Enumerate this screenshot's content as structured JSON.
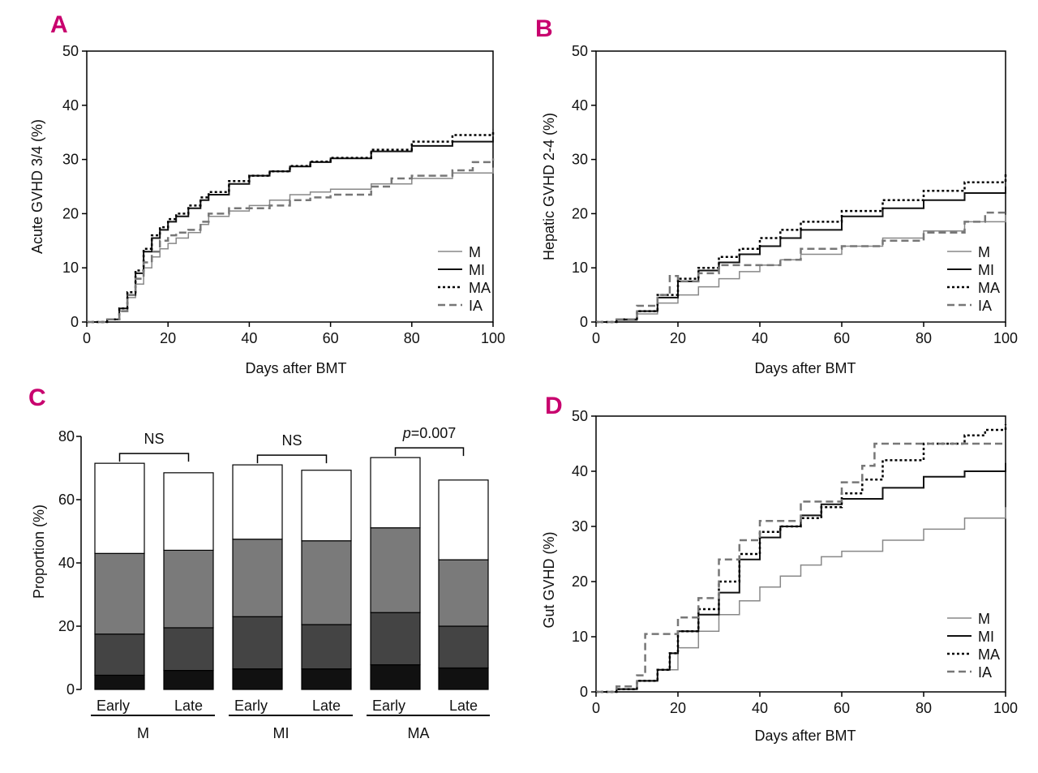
{
  "chart_data": [
    {
      "panel": "A",
      "type": "line",
      "ylabel": "Acute GVHD 3/4 (%)",
      "xlabel": "Days after BMT",
      "xlim": [
        0,
        100
      ],
      "ylim": [
        0,
        50
      ],
      "xticks": [
        "0",
        "20",
        "40",
        "60",
        "80",
        "100"
      ],
      "yticks": [
        "0",
        "10",
        "20",
        "30",
        "40",
        "50"
      ],
      "legend_position": "bottom-right",
      "series": [
        {
          "name": "M",
          "color": "#888888",
          "dash": "solid",
          "width": 1.5,
          "x": [
            0,
            5,
            8,
            10,
            12,
            14,
            16,
            18,
            20,
            22,
            25,
            28,
            30,
            35,
            40,
            45,
            50,
            55,
            60,
            70,
            80,
            90,
            100
          ],
          "y": [
            0,
            0.5,
            2,
            4.5,
            7,
            10,
            12,
            13.5,
            14.5,
            15.5,
            16.5,
            18,
            19.5,
            20.5,
            21.5,
            22.5,
            23.5,
            24,
            24.5,
            25.5,
            26.5,
            27.5,
            28.5
          ]
        },
        {
          "name": "MI",
          "color": "#111111",
          "dash": "solid",
          "width": 2,
          "x": [
            0,
            5,
            8,
            10,
            12,
            14,
            16,
            18,
            20,
            22,
            25,
            28,
            30,
            35,
            40,
            45,
            50,
            55,
            60,
            70,
            80,
            90,
            100
          ],
          "y": [
            0,
            0.5,
            2.5,
            5,
            9,
            13,
            15.5,
            17,
            18.5,
            19.5,
            21,
            22.5,
            23.5,
            25.5,
            27,
            27.8,
            28.7,
            29.5,
            30.2,
            31.5,
            32.5,
            33.3,
            34.2
          ]
        },
        {
          "name": "MA",
          "color": "#000000",
          "dash": "dotted",
          "width": 2.5,
          "x": [
            0,
            5,
            8,
            10,
            12,
            14,
            16,
            18,
            20,
            22,
            25,
            28,
            30,
            35,
            40,
            45,
            50,
            55,
            60,
            70,
            80,
            90,
            100
          ],
          "y": [
            0,
            0.5,
            2.5,
            5.5,
            9.5,
            13.5,
            16,
            17.5,
            19,
            20,
            21.5,
            23,
            24,
            26,
            27,
            27.8,
            28.8,
            29.6,
            30.3,
            31.8,
            33.3,
            34.5,
            35.5
          ]
        },
        {
          "name": "IA",
          "color": "#777777",
          "dash": "dashed",
          "width": 2.5,
          "x": [
            0,
            5,
            8,
            10,
            12,
            14,
            16,
            18,
            20,
            22,
            25,
            28,
            30,
            35,
            40,
            45,
            50,
            55,
            60,
            70,
            75,
            80,
            90,
            95,
            100
          ],
          "y": [
            0,
            0.5,
            2,
            5,
            8,
            11,
            13,
            15,
            16,
            16.5,
            17,
            18.5,
            20,
            21,
            21,
            21.5,
            22.5,
            23,
            23.5,
            25,
            26.5,
            27,
            28,
            29.5,
            30.2
          ]
        }
      ]
    },
    {
      "panel": "B",
      "type": "line",
      "ylabel": "Hepatic GVHD 2-4 (%)",
      "xlabel": "Days after BMT",
      "xlim": [
        0,
        100
      ],
      "ylim": [
        0,
        50
      ],
      "xticks": [
        "0",
        "20",
        "40",
        "60",
        "80",
        "100"
      ],
      "yticks": [
        "0",
        "10",
        "20",
        "30",
        "40",
        "50"
      ],
      "legend_position": "bottom-right",
      "series": [
        {
          "name": "M",
          "color": "#888888",
          "dash": "solid",
          "width": 1.5,
          "x": [
            0,
            5,
            10,
            15,
            20,
            25,
            30,
            35,
            40,
            45,
            50,
            60,
            70,
            80,
            90,
            100
          ],
          "y": [
            0,
            0.3,
            1.5,
            3.5,
            5,
            6.5,
            8,
            9.3,
            10.5,
            11.5,
            12.5,
            14,
            15.5,
            16.8,
            18.5,
            19.8
          ]
        },
        {
          "name": "MI",
          "color": "#111111",
          "dash": "solid",
          "width": 2,
          "x": [
            0,
            5,
            10,
            15,
            20,
            25,
            30,
            35,
            40,
            45,
            50,
            60,
            70,
            80,
            90,
            100
          ],
          "y": [
            0,
            0.5,
            2,
            4.5,
            7.5,
            9.5,
            11,
            12.5,
            14,
            15.5,
            17,
            19.5,
            21,
            22.5,
            23.8,
            25
          ]
        },
        {
          "name": "MA",
          "color": "#000000",
          "dash": "dotted",
          "width": 2.5,
          "x": [
            0,
            5,
            10,
            15,
            20,
            25,
            30,
            35,
            40,
            45,
            50,
            60,
            70,
            80,
            90,
            100
          ],
          "y": [
            0,
            0.5,
            2,
            5,
            8,
            10,
            12,
            13.5,
            15.5,
            17,
            18.5,
            20.5,
            22.5,
            24.2,
            25.8,
            27.3
          ]
        },
        {
          "name": "IA",
          "color": "#777777",
          "dash": "dashed",
          "width": 2.5,
          "x": [
            0,
            5,
            10,
            15,
            18,
            20,
            25,
            30,
            35,
            40,
            45,
            50,
            60,
            70,
            80,
            90,
            95,
            100
          ],
          "y": [
            0,
            0.5,
            3,
            5,
            8.5,
            7.5,
            9,
            10.5,
            10.5,
            10.5,
            11.5,
            13.5,
            14,
            15,
            16.5,
            18.5,
            20.2,
            20.2
          ]
        }
      ]
    },
    {
      "panel": "C",
      "type": "bar",
      "stacked": true,
      "ylabel": "Proportion (%)",
      "ylim": [
        0,
        80
      ],
      "yticks": [
        "0",
        "20",
        "40",
        "60",
        "80"
      ],
      "categories": [
        "Early",
        "Late",
        "Early",
        "Late",
        "Early",
        "Late"
      ],
      "groups": [
        "M",
        "MI",
        "MA"
      ],
      "significance": [
        {
          "text": "NS",
          "italic_prefix": ""
        },
        {
          "text": "NS",
          "italic_prefix": ""
        },
        {
          "text": "=0.007",
          "italic_prefix": "p"
        }
      ],
      "segment_colors": [
        "#111111",
        "#444444",
        "#7a7a7a",
        "#ffffff"
      ],
      "series": [
        {
          "values": [
            4.5,
            6,
            6.5,
            6.5,
            7.8,
            6.8
          ]
        },
        {
          "values": [
            13,
            13.5,
            16.5,
            14,
            16.5,
            13.2
          ]
        },
        {
          "values": [
            25.5,
            24.5,
            24.5,
            26.5,
            26.8,
            21
          ]
        },
        {
          "values": [
            28.5,
            24.5,
            23.5,
            22.3,
            22.2,
            25.2
          ]
        }
      ]
    },
    {
      "panel": "D",
      "type": "line",
      "ylabel": "Gut GVHD (%)",
      "xlabel": "Days after BMT",
      "xlim": [
        0,
        100
      ],
      "ylim": [
        0,
        50
      ],
      "xticks": [
        "0",
        "20",
        "40",
        "60",
        "80",
        "100"
      ],
      "yticks": [
        "0",
        "10",
        "20",
        "30",
        "40",
        "50"
      ],
      "legend_position": "bottom-right",
      "series": [
        {
          "name": "M",
          "color": "#888888",
          "dash": "solid",
          "width": 1.5,
          "x": [
            0,
            5,
            10,
            15,
            20,
            25,
            30,
            35,
            40,
            45,
            50,
            55,
            60,
            70,
            80,
            90,
            100
          ],
          "y": [
            0,
            0.5,
            2,
            4,
            8,
            11,
            14,
            16.5,
            19,
            21,
            23,
            24.5,
            25.5,
            27.5,
            29.5,
            31.5,
            33.5
          ]
        },
        {
          "name": "MI",
          "color": "#111111",
          "dash": "solid",
          "width": 2,
          "x": [
            0,
            5,
            10,
            15,
            18,
            20,
            25,
            30,
            35,
            40,
            45,
            50,
            55,
            60,
            70,
            80,
            90,
            100
          ],
          "y": [
            0,
            0.5,
            2,
            4,
            7,
            11,
            14,
            18,
            24,
            28,
            30,
            32,
            34,
            35,
            37,
            39,
            40,
            41.5
          ]
        },
        {
          "name": "MA",
          "color": "#000000",
          "dash": "dotted",
          "width": 2.5,
          "x": [
            0,
            5,
            10,
            15,
            18,
            20,
            25,
            30,
            35,
            40,
            45,
            50,
            55,
            60,
            65,
            70,
            80,
            90,
            95,
            100
          ],
          "y": [
            0,
            0.5,
            2,
            4,
            7,
            11,
            15,
            20,
            25,
            29,
            30,
            31.5,
            33.5,
            36,
            38.5,
            42,
            45,
            46.5,
            47.5,
            48.5
          ]
        },
        {
          "name": "IA",
          "color": "#777777",
          "dash": "dashed",
          "width": 2.5,
          "x": [
            0,
            5,
            10,
            12,
            15,
            18,
            20,
            25,
            30,
            35,
            40,
            45,
            50,
            55,
            60,
            65,
            68,
            75,
            80,
            90,
            100
          ],
          "y": [
            0,
            1,
            3,
            10.5,
            10.5,
            10.5,
            13.5,
            17,
            24,
            27.5,
            31,
            31,
            34.5,
            34.5,
            38,
            41,
            45,
            45,
            45,
            45,
            45
          ]
        }
      ]
    }
  ]
}
